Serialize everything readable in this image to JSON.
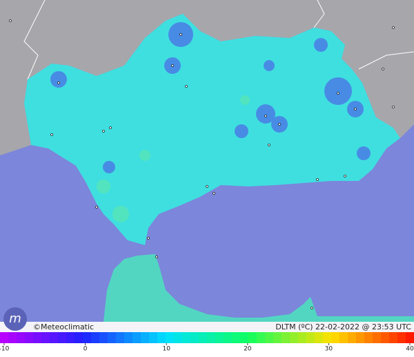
{
  "credit": "©Meteoclimatic",
  "caption": "DLTM (ºC)  22-02-2022 @ 23:53 UTC",
  "colorbar": {
    "range": [
      -10,
      40
    ],
    "ticks": [
      -10,
      0,
      10,
      20,
      30,
      40
    ],
    "colors": [
      "#c000ff",
      "#2020ff",
      "#00e0ff",
      "#10ff60",
      "#ffe000",
      "#ff1000"
    ]
  }
}
